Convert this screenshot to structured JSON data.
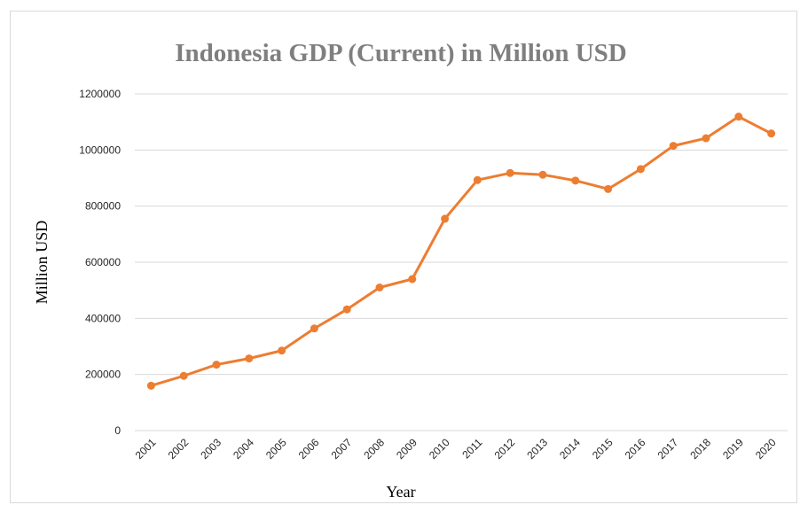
{
  "chart_data": {
    "type": "line",
    "title": "Indonesia GDP (Current) in Million USD",
    "xlabel": "Year",
    "ylabel": "Million USD",
    "ylim": [
      0,
      1200000
    ],
    "yticks": [
      "0",
      "200000",
      "400000",
      "600000",
      "800000",
      "1000000",
      "1200000"
    ],
    "categories": [
      "2001",
      "2002",
      "2003",
      "2004",
      "2005",
      "2006",
      "2007",
      "2008",
      "2009",
      "2010",
      "2011",
      "2012",
      "2013",
      "2014",
      "2015",
      "2016",
      "2017",
      "2018",
      "2019",
      "2020"
    ],
    "series": [
      {
        "values": [
          160000,
          195000,
          235000,
          257000,
          285000,
          364000,
          432000,
          510000,
          540000,
          755000,
          893000,
          918000,
          912000,
          891000,
          861000,
          932000,
          1015000,
          1042000,
          1119000,
          1059000
        ]
      }
    ],
    "grid": true,
    "legend": "none",
    "line_color": "#ED7D31",
    "grid_color": "#d9d9d9"
  }
}
